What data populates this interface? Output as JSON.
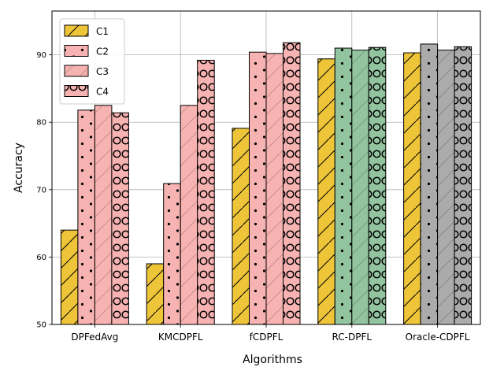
{
  "chart_data": {
    "type": "bar",
    "title": "",
    "xlabel": "Algorithms",
    "ylabel": "Accuracy",
    "ylim": [
      50,
      96.5
    ],
    "yticks": [
      50,
      60,
      70,
      80,
      90
    ],
    "grid": true,
    "legend_position": "top-left",
    "categories": [
      "DPFedAvg",
      "KMCDPFL",
      "fCDPFL",
      "RC-DPFL",
      "Oracle-CDPFL"
    ],
    "series": [
      {
        "name": "C1",
        "values": [
          64.0,
          59.0,
          79.1,
          89.4,
          90.3
        ],
        "hatch": "diagonal"
      },
      {
        "name": "C2",
        "values": [
          81.8,
          70.9,
          90.4,
          91.0,
          91.6
        ],
        "hatch": "dots"
      },
      {
        "name": "C3",
        "values": [
          82.5,
          82.5,
          90.2,
          90.7,
          90.7
        ],
        "hatch": "diagonal-light"
      },
      {
        "name": "C4",
        "values": [
          81.4,
          89.2,
          91.8,
          91.1,
          91.2
        ],
        "hatch": "circles"
      }
    ],
    "bar_colors": [
      [
        "#eec438",
        "#f7b3b1",
        "#f7b3b1",
        "#f7b3b1"
      ],
      [
        "#eec438",
        "#f7b3b1",
        "#f7b3b1",
        "#f7b3b1"
      ],
      [
        "#eec438",
        "#f7b3b1",
        "#f7b3b1",
        "#f7b3b1"
      ],
      [
        "#eec438",
        "#93c4a0",
        "#93c4a0",
        "#93c4a0"
      ],
      [
        "#eec438",
        "#ababab",
        "#ababab",
        "#ababab"
      ]
    ],
    "legend_colors": [
      "#eec438",
      "#f7b3b1",
      "#f7b3b1",
      "#f7b3b1"
    ]
  }
}
